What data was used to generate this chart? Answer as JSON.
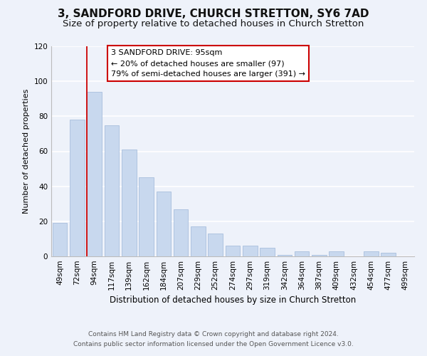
{
  "title": "3, SANDFORD DRIVE, CHURCH STRETTON, SY6 7AD",
  "subtitle": "Size of property relative to detached houses in Church Stretton",
  "xlabel": "Distribution of detached houses by size in Church Stretton",
  "ylabel": "Number of detached properties",
  "bar_color": "#c8d8ee",
  "bar_edge_color": "#a8bedd",
  "categories": [
    "49sqm",
    "72sqm",
    "94sqm",
    "117sqm",
    "139sqm",
    "162sqm",
    "184sqm",
    "207sqm",
    "229sqm",
    "252sqm",
    "274sqm",
    "297sqm",
    "319sqm",
    "342sqm",
    "364sqm",
    "387sqm",
    "409sqm",
    "432sqm",
    "454sqm",
    "477sqm",
    "499sqm"
  ],
  "values": [
    19,
    78,
    94,
    75,
    61,
    45,
    37,
    27,
    17,
    13,
    6,
    6,
    5,
    1,
    3,
    1,
    3,
    0,
    3,
    2,
    0
  ],
  "ylim": [
    0,
    120
  ],
  "yticks": [
    0,
    20,
    40,
    60,
    80,
    100,
    120
  ],
  "vline_index": 2,
  "vline_color": "#cc0000",
  "annotation_lines": [
    "3 SANDFORD DRIVE: 95sqm",
    "← 20% of detached houses are smaller (97)",
    "79% of semi-detached houses are larger (391) →"
  ],
  "annotation_box_color": "#ffffff",
  "annotation_box_edgecolor": "#cc0000",
  "footer_line1": "Contains HM Land Registry data © Crown copyright and database right 2024.",
  "footer_line2": "Contains public sector information licensed under the Open Government Licence v3.0.",
  "background_color": "#eef2fa",
  "grid_color": "#ffffff",
  "title_fontsize": 11,
  "subtitle_fontsize": 9.5,
  "axis_label_fontsize": 8.5,
  "tick_fontsize": 7.5,
  "ylabel_fontsize": 8,
  "footer_fontsize": 6.5
}
